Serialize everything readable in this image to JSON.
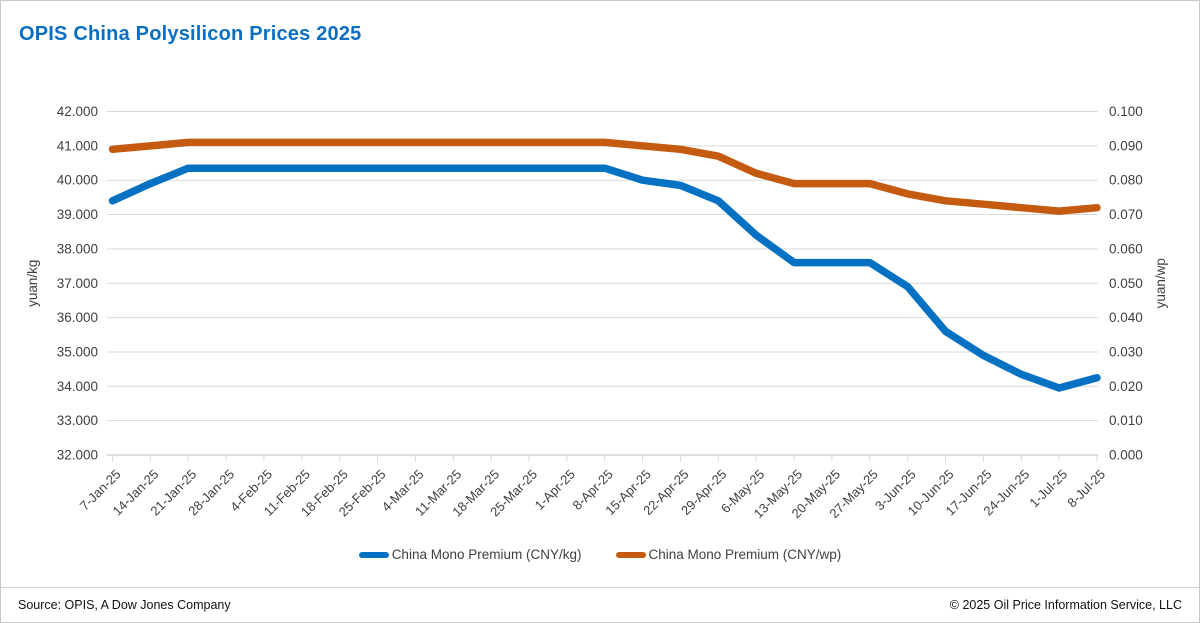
{
  "header": {
    "title": "OPIS China Polysilicon Prices 2025"
  },
  "chart_data": {
    "type": "line",
    "title": "OPIS China Polysilicon Prices 2025",
    "x_labels": [
      "7-Jan-25",
      "14-Jan-25",
      "21-Jan-25",
      "28-Jan-25",
      "4-Feb-25",
      "11-Feb-25",
      "18-Feb-25",
      "25-Feb-25",
      "4-Mar-25",
      "11-Mar-25",
      "18-Mar-25",
      "25-Mar-25",
      "1-Apr-25",
      "8-Apr-25",
      "15-Apr-25",
      "22-Apr-25",
      "29-Apr-25",
      "6-May-25",
      "13-May-25",
      "20-May-25",
      "27-May-25",
      "3-Jun-25",
      "10-Jun-25",
      "17-Jun-25",
      "24-Jun-25",
      "1-Jul-25",
      "8-Jul-25"
    ],
    "series": [
      {
        "name": "China Mono Premium (CNY/kg)",
        "axis": "left",
        "color": "#0471c2",
        "values": [
          39.4,
          39.9,
          40.35,
          40.35,
          40.35,
          40.35,
          40.35,
          40.35,
          40.35,
          40.35,
          40.35,
          40.35,
          40.35,
          40.35,
          40.0,
          39.85,
          39.4,
          38.4,
          37.6,
          37.6,
          37.6,
          36.9,
          35.6,
          34.9,
          34.35,
          33.95,
          34.25
        ]
      },
      {
        "name": "China Mono Premium (CNY/wp)",
        "axis": "right",
        "color": "#c55a11",
        "values": [
          0.089,
          0.09,
          0.091,
          0.091,
          0.091,
          0.091,
          0.091,
          0.091,
          0.091,
          0.091,
          0.091,
          0.091,
          0.091,
          0.091,
          0.09,
          0.089,
          0.087,
          0.082,
          0.079,
          0.079,
          0.079,
          0.076,
          0.074,
          0.073,
          0.072,
          0.071,
          0.072
        ]
      }
    ],
    "left_axis": {
      "label": "yuan/kg",
      "min": 32.0,
      "max": 42.0,
      "step": 1.0,
      "decimals": 3
    },
    "right_axis": {
      "label": "yuan/wp",
      "min": 0.0,
      "max": 0.1,
      "step": 0.01,
      "decimals": 3
    },
    "grid": true,
    "legend_position": "bottom"
  },
  "footer": {
    "source": "Source: OPIS, A Dow Jones Company",
    "copyright": "© 2025 Oil Price Information Service, LLC"
  },
  "colors": {
    "title": "#0a6fc2",
    "axis_text": "#404040",
    "gridline": "#d9d9d9",
    "axis_line": "#bfbfbf"
  }
}
